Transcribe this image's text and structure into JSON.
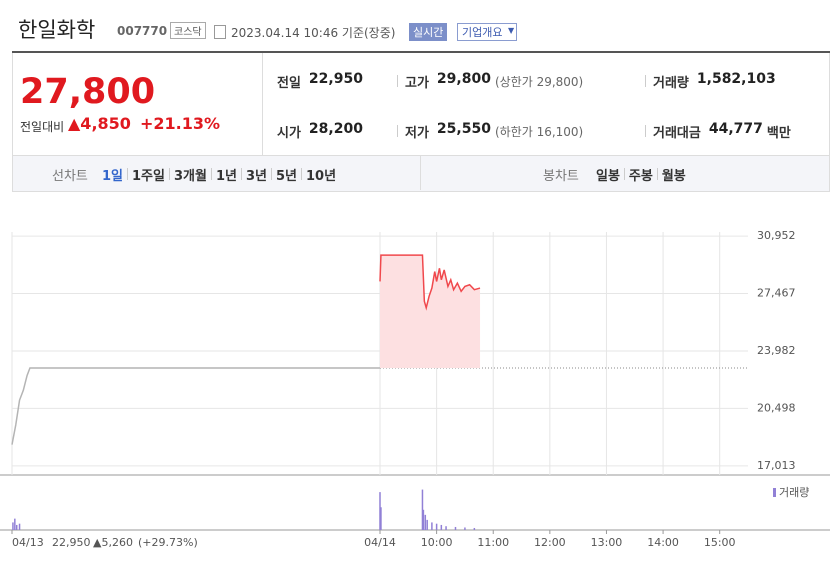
{
  "header": {
    "name": "한일화학",
    "code": "007770",
    "market": "코스닥",
    "timestamp": "2023.04.14 10:46 기준(장중)",
    "realtime": "실시간",
    "company_info": "기업개요"
  },
  "quote": {
    "price": "27,800",
    "change_label": "전일대비",
    "change": "▲4,850",
    "change_rate": "+21.13%"
  },
  "summary": [
    {
      "label": "전일",
      "value": "22,950"
    },
    {
      "label": "고가",
      "value": "29,800",
      "note": "(상한가 29,800)"
    },
    {
      "label": "거래량",
      "value": "1,582,103"
    },
    {
      "label": "시가",
      "value": "28,200"
    },
    {
      "label": "저가",
      "value": "25,550",
      "note": "(하한가 16,100)"
    },
    {
      "label": "거래대금",
      "value": "44,777",
      "unit": "백만"
    }
  ],
  "tabs": {
    "line_label": "선차트",
    "line_periods": [
      "1일",
      "1주일",
      "3개월",
      "1년",
      "3년",
      "5년",
      "10년"
    ],
    "selected": 0,
    "candle_label": "봉차트",
    "candle_periods": [
      "일봉",
      "주봉",
      "월봉"
    ]
  },
  "prev_day": {
    "close": "22,950",
    "change": "▲5,260",
    "rate": "(+29.73%)"
  },
  "chart_data": {
    "type": "line",
    "xlim": [
      "04/13 09:00",
      "04/14 15:30"
    ],
    "xticks": [
      {
        "value": "04/13 09:00",
        "label": "04/13"
      },
      {
        "value": "04/14 09:00",
        "label": "04/14"
      },
      {
        "value": "04/14 10:00",
        "label": "10:00"
      },
      {
        "value": "04/14 11:00",
        "label": "11:00"
      },
      {
        "value": "04/14 12:00",
        "label": "12:00"
      },
      {
        "value": "04/14 13:00",
        "label": "13:00"
      },
      {
        "value": "04/14 14:00",
        "label": "14:00"
      },
      {
        "value": "04/14 15:00",
        "label": "15:00"
      }
    ],
    "ylim": [
      16460,
      31200
    ],
    "yticks": [
      {
        "value": 17013,
        "label": "17,013"
      },
      {
        "value": 20498,
        "label": "20,498"
      },
      {
        "value": 23982,
        "label": "23,982"
      },
      {
        "value": 27467,
        "label": "27,467"
      },
      {
        "value": 30952,
        "label": "30,952"
      }
    ],
    "base": 22950,
    "y2lim": [
      0,
      190000
    ],
    "grid": true,
    "series": [
      {
        "color": "#b4b4b4",
        "x": [
          "04/13 09:00",
          "04/13 09:04",
          "04/13 09:08",
          "04/13 09:12",
          "04/13 09:16",
          "04/13 09:19",
          "04/13 15:30"
        ],
        "values": [
          18300,
          19500,
          21000,
          21600,
          22500,
          22950,
          22950
        ]
      },
      {
        "color": "#f0484c",
        "fill": "#fde0e1",
        "x": [
          "04/14 09:00",
          "04/14 09:01",
          "04/14 09:45",
          "04/14 09:47",
          "04/14 09:49",
          "04/14 09:52",
          "04/14 09:55",
          "04/14 09:58",
          "04/14 10:00",
          "04/14 10:03",
          "04/14 10:05",
          "04/14 10:08",
          "04/14 10:12",
          "04/14 10:15",
          "04/14 10:18",
          "04/14 10:22",
          "04/14 10:26",
          "04/14 10:30",
          "04/14 10:35",
          "04/14 10:40",
          "04/14 10:46"
        ],
        "values": [
          28200,
          29800,
          29800,
          27000,
          26600,
          27300,
          27800,
          28800,
          28200,
          29000,
          28300,
          28900,
          27900,
          28300,
          27700,
          28100,
          27600,
          27900,
          28000,
          27700,
          27800
        ]
      },
      {
        "name": "거래량",
        "color": "#9180d6",
        "axis": "y2",
        "x": [
          "04/13 09:01",
          "04/13 09:03",
          "04/13 09:05",
          "04/13 09:08",
          "04/14 09:00",
          "04/14 09:01",
          "04/14 09:45",
          "04/14 09:46",
          "04/14 09:48",
          "04/14 09:50",
          "04/14 09:55",
          "04/14 10:00",
          "04/14 10:05",
          "04/14 10:10",
          "04/14 10:20",
          "04/14 10:30",
          "04/14 10:40"
        ],
        "values": [
          30000,
          45000,
          20000,
          25000,
          150000,
          90000,
          160000,
          80000,
          60000,
          40000,
          30000,
          25000,
          20000,
          15000,
          12000,
          10000,
          8000
        ]
      }
    ]
  }
}
